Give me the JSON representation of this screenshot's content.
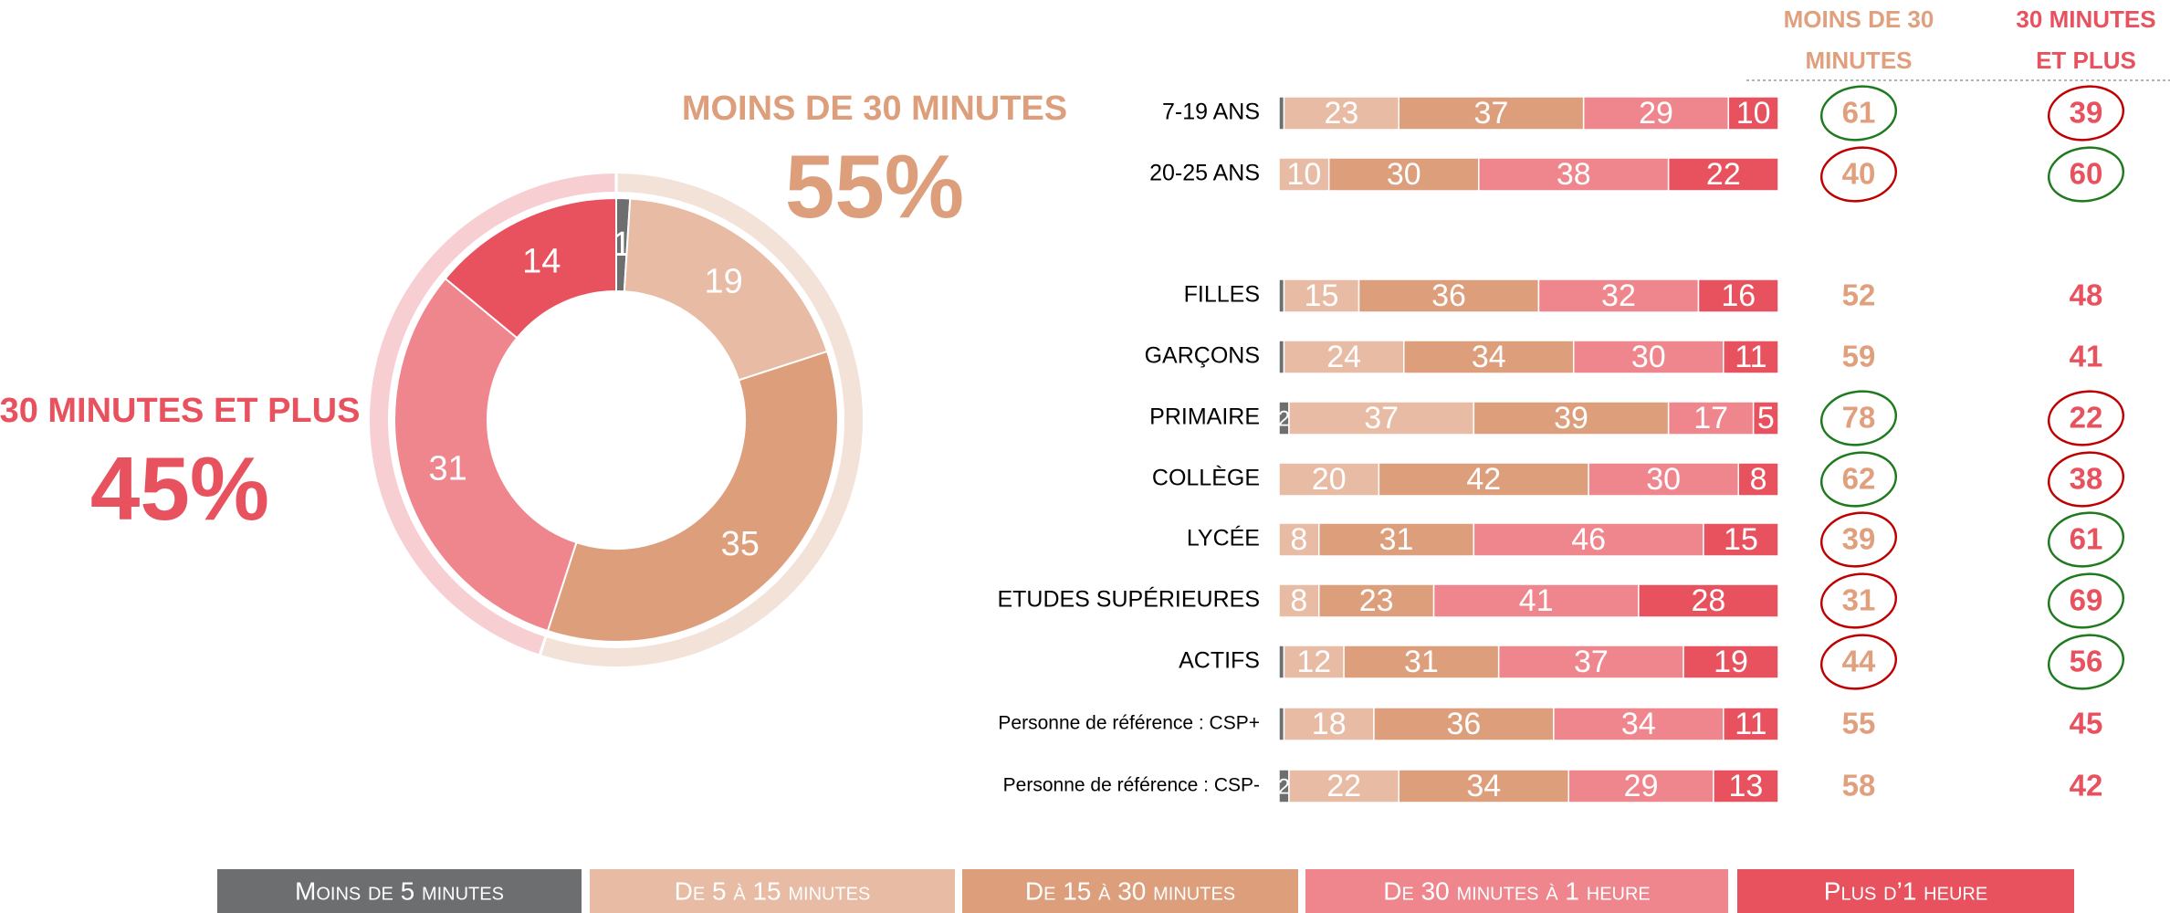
{
  "chart_data": [
    {
      "type": "donut",
      "values": [
        1,
        19,
        35,
        31,
        14
      ],
      "colors": [
        "#6d6e70",
        "#e8bba5",
        "#dd9e7c",
        "#f0868d",
        "#e8525f"
      ],
      "groups": [
        {
          "label": "MOINS DE 30 MINUTES",
          "value": 55,
          "value_label": "55%",
          "color": "#dd9e7c",
          "ring_color": "#f3e2d8"
        },
        {
          "label": "30 MINUTES ET PLUS",
          "value": 45,
          "value_label": "45%",
          "color": "#e8525f",
          "ring_color": "#f7cfd3"
        }
      ]
    },
    {
      "type": "stacked_bar",
      "categories": [
        "7-19 ANS",
        "20-25 ANS",
        "FILLES",
        "GARÇONS",
        "PRIMAIRE",
        "COLLÈGE",
        "LYCÉE",
        "ETUDES SUPÉRIEURES",
        "ACTIFS",
        "Personne de référence : CSP+",
        "Personne de référence : CSP-"
      ],
      "series": [
        {
          "name": "Moins de 5 minutes",
          "color": "#6d6e70",
          "values": [
            1,
            0,
            1,
            1,
            2,
            0,
            0,
            0,
            1,
            1,
            2
          ]
        },
        {
          "name": "De 5 à 15 minutes",
          "color": "#e8bba5",
          "values": [
            23,
            10,
            15,
            24,
            37,
            20,
            8,
            8,
            12,
            18,
            22
          ]
        },
        {
          "name": "De 15 à 30 minutes",
          "color": "#dd9e7c",
          "values": [
            37,
            30,
            36,
            34,
            39,
            42,
            31,
            23,
            31,
            36,
            34
          ]
        },
        {
          "name": "De 30 minutes à 1 heure",
          "color": "#f0868d",
          "values": [
            29,
            38,
            32,
            30,
            17,
            30,
            46,
            41,
            37,
            34,
            29
          ]
        },
        {
          "name": "Plus d’1 heure",
          "color": "#e8525f",
          "values": [
            10,
            22,
            16,
            11,
            5,
            8,
            15,
            28,
            19,
            11,
            13
          ]
        }
      ],
      "xlim": [
        0,
        100
      ],
      "summary": [
        {
          "header": [
            "MOINS DE 30",
            "MINUTES"
          ],
          "color": "#e0a07e",
          "values": [
            61,
            40,
            52,
            59,
            78,
            62,
            39,
            31,
            44,
            55,
            58
          ],
          "circles": [
            "#1e7a1e",
            "#c00000",
            null,
            null,
            "#1e7a1e",
            "#1e7a1e",
            "#c00000",
            "#c00000",
            "#c00000",
            null,
            null
          ]
        },
        {
          "header": [
            "30 MINUTES",
            "ET PLUS"
          ],
          "color": "#e8525f",
          "values": [
            39,
            60,
            48,
            41,
            22,
            38,
            61,
            69,
            56,
            45,
            42
          ],
          "circles": [
            "#c00000",
            "#1e7a1e",
            null,
            null,
            "#c00000",
            "#c00000",
            "#1e7a1e",
            "#1e7a1e",
            "#1e7a1e",
            null,
            null
          ]
        }
      ]
    }
  ]
}
